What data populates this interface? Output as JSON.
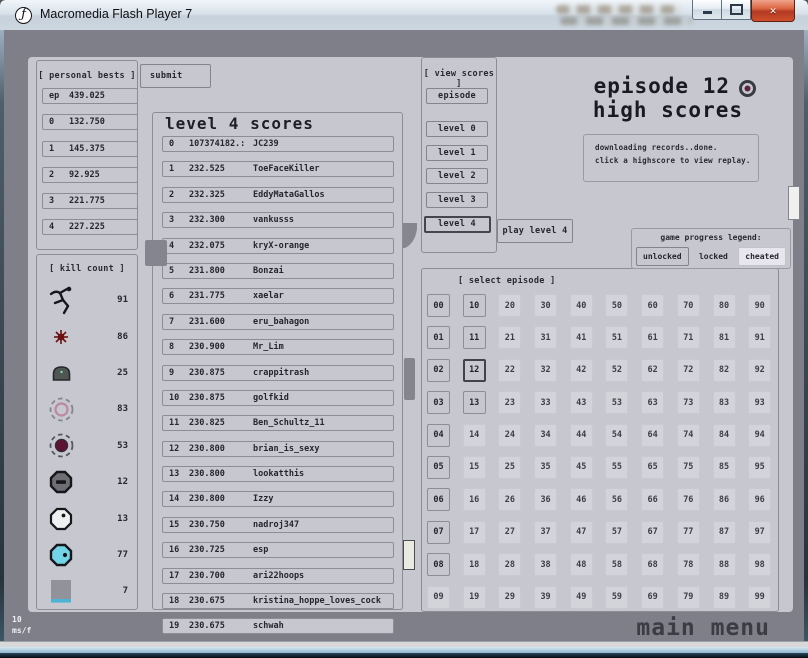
{
  "window": {
    "title": "Macromedia Flash Player 7",
    "frame_rate": "10",
    "frame_unit": "ms/f",
    "main_menu_label": "main menu"
  },
  "personal_bests": {
    "header": "[ personal bests ]",
    "submit_label": "submit",
    "rows": [
      {
        "label": "ep",
        "value": "439.025"
      },
      {
        "label": "0",
        "value": "132.750"
      },
      {
        "label": "1",
        "value": "145.375"
      },
      {
        "label": "2",
        "value": "92.925"
      },
      {
        "label": "3",
        "value": "221.775"
      },
      {
        "label": "4",
        "value": "227.225"
      }
    ]
  },
  "kill_count": {
    "header": "[ kill count ]",
    "rows": [
      {
        "icon": "ninja-icon",
        "value": "91"
      },
      {
        "icon": "mine-icon",
        "value": "86"
      },
      {
        "icon": "turret-icon",
        "value": "25"
      },
      {
        "icon": "drone-ring-icon",
        "value": "83"
      },
      {
        "icon": "drone-filled-icon",
        "value": "53"
      },
      {
        "icon": "zap-drone-icon",
        "value": "12"
      },
      {
        "icon": "seeker-drone-icon",
        "value": "13"
      },
      {
        "icon": "laser-drone-icon",
        "value": "77"
      },
      {
        "icon": "thwump-icon",
        "value": "7"
      }
    ]
  },
  "scores_panel": {
    "title": "level 4 scores",
    "rows": [
      {
        "rank": "0",
        "score": "107374182.:",
        "name": "JC239"
      },
      {
        "rank": "1",
        "score": "232.525",
        "name": "ToeFaceKiller"
      },
      {
        "rank": "2",
        "score": "232.325",
        "name": "EddyMataGallos"
      },
      {
        "rank": "3",
        "score": "232.300",
        "name": "vankusss"
      },
      {
        "rank": "4",
        "score": "232.075",
        "name": "kryX-orange"
      },
      {
        "rank": "5",
        "score": "231.800",
        "name": "Bonzai"
      },
      {
        "rank": "6",
        "score": "231.775",
        "name": "xaelar"
      },
      {
        "rank": "7",
        "score": "231.600",
        "name": "eru_bahagon"
      },
      {
        "rank": "8",
        "score": "230.900",
        "name": "Mr_Lim"
      },
      {
        "rank": "9",
        "score": "230.875",
        "name": "crappitrash"
      },
      {
        "rank": "10",
        "score": "230.875",
        "name": "golfkid"
      },
      {
        "rank": "11",
        "score": "230.825",
        "name": "Ben_Schultz_11"
      },
      {
        "rank": "12",
        "score": "230.800",
        "name": "brian_is_sexy"
      },
      {
        "rank": "13",
        "score": "230.800",
        "name": "lookatthis"
      },
      {
        "rank": "14",
        "score": "230.800",
        "name": "Izzy"
      },
      {
        "rank": "15",
        "score": "230.750",
        "name": "nadroj347"
      },
      {
        "rank": "16",
        "score": "230.725",
        "name": "esp"
      },
      {
        "rank": "17",
        "score": "230.700",
        "name": "ari22hoops"
      },
      {
        "rank": "18",
        "score": "230.675",
        "name": "kristina_hoppe_loves_cock"
      },
      {
        "rank": "19",
        "score": "230.675",
        "name": "schwah"
      }
    ]
  },
  "view_scores": {
    "header": "[ view scores ]",
    "episode_label": "episode",
    "levels": [
      "level 0",
      "level 1",
      "level 2",
      "level 3",
      "level 4"
    ],
    "selected": "level 4",
    "play_label": "play level 4"
  },
  "high_scores": {
    "title_line1": "episode 12",
    "title_line2": "high scores",
    "status_line1": "downloading records..done.",
    "status_line2": "click a highscore to view replay."
  },
  "legend": {
    "title": "game progress legend:",
    "items": [
      {
        "label": "unlocked",
        "style": "unlocked"
      },
      {
        "label": "locked",
        "style": "locked"
      },
      {
        "label": "cheated",
        "style": "cheated"
      }
    ]
  },
  "episode_select": {
    "header": "[ select episode ]",
    "selected": "12",
    "unlocked": [
      "00",
      "01",
      "02",
      "03",
      "04",
      "05",
      "06",
      "07",
      "08",
      "10",
      "11",
      "13"
    ],
    "cells": [
      [
        "00",
        "10",
        "20",
        "30",
        "40",
        "50",
        "60",
        "70",
        "80",
        "90"
      ],
      [
        "01",
        "11",
        "21",
        "31",
        "41",
        "51",
        "61",
        "71",
        "81",
        "91"
      ],
      [
        "02",
        "12",
        "22",
        "32",
        "42",
        "52",
        "62",
        "72",
        "82",
        "92"
      ],
      [
        "03",
        "13",
        "23",
        "33",
        "43",
        "53",
        "63",
        "73",
        "83",
        "93"
      ],
      [
        "04",
        "14",
        "24",
        "34",
        "44",
        "54",
        "64",
        "74",
        "84",
        "94"
      ],
      [
        "05",
        "15",
        "25",
        "35",
        "45",
        "55",
        "65",
        "75",
        "85",
        "95"
      ],
      [
        "06",
        "16",
        "26",
        "36",
        "46",
        "56",
        "66",
        "76",
        "86",
        "96"
      ],
      [
        "07",
        "17",
        "27",
        "37",
        "47",
        "57",
        "67",
        "77",
        "87",
        "97"
      ],
      [
        "08",
        "18",
        "28",
        "38",
        "48",
        "58",
        "68",
        "78",
        "88",
        "98"
      ],
      [
        "09",
        "19",
        "29",
        "39",
        "49",
        "59",
        "69",
        "79",
        "89",
        "99"
      ]
    ]
  },
  "colors": {
    "panel": "#c7c7cf",
    "stage": "#7f7f89",
    "text": "#26262e",
    "selected_border": "#42424a",
    "cheated_bg": "#d3d3da",
    "close_button_red": "#cf4f2c",
    "laser_cyan": "#72d4e6",
    "mine_red": "#6b1111",
    "drone_maroon": "#5c1430"
  }
}
